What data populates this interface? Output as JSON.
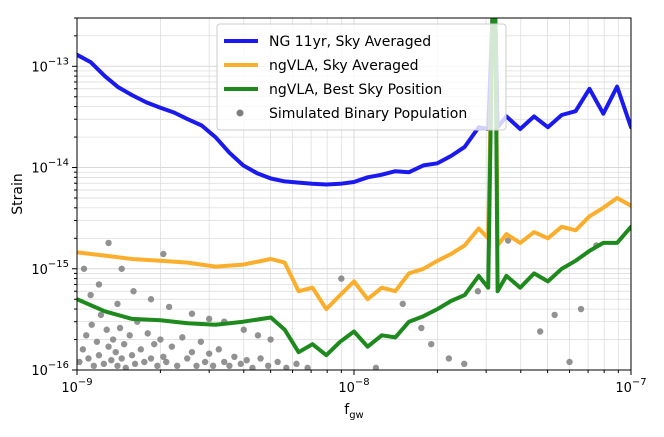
{
  "chart_data": {
    "type": "line",
    "xlabel": "f",
    "xlabel_sub": "gw",
    "ylabel": "Strain",
    "xscale": "log",
    "yscale": "log",
    "xlim": [
      1e-09,
      1e-07
    ],
    "ylim": [
      1e-16,
      3e-13
    ],
    "grid": true,
    "legend_position": "top-right",
    "x_ticks": [
      {
        "value": 1e-09,
        "base": "10",
        "exp": "−9"
      },
      {
        "value": 1e-08,
        "base": "10",
        "exp": "−8"
      },
      {
        "value": 1e-07,
        "base": "10",
        "exp": "−7"
      }
    ],
    "y_ticks": [
      {
        "value": 1e-16,
        "base": "10",
        "exp": "−16"
      },
      {
        "value": 1e-15,
        "base": "10",
        "exp": "−15"
      },
      {
        "value": 1e-14,
        "base": "10",
        "exp": "−14"
      },
      {
        "value": 1e-13,
        "base": "10",
        "exp": "−13"
      }
    ],
    "series": [
      {
        "name": "NG 11yr, Sky Averaged",
        "color": "#1a1aef",
        "kind": "line",
        "points": [
          [
            1e-09,
            1.3e-13
          ],
          [
            1.12e-09,
            1.1e-13
          ],
          [
            1.26e-09,
            8e-14
          ],
          [
            1.41e-09,
            6.2e-14
          ],
          [
            1.58e-09,
            5.2e-14
          ],
          [
            1.78e-09,
            4.4e-14
          ],
          [
            2e-09,
            3.9e-14
          ],
          [
            2.24e-09,
            3.5e-14
          ],
          [
            2.51e-09,
            3e-14
          ],
          [
            2.82e-09,
            2.6e-14
          ],
          [
            3.16e-09,
            2e-14
          ],
          [
            3.55e-09,
            1.4e-14
          ],
          [
            3.98e-09,
            1.05e-14
          ],
          [
            4.47e-09,
            8.8e-15
          ],
          [
            5.01e-09,
            7.8e-15
          ],
          [
            5.62e-09,
            7.3e-15
          ],
          [
            6.31e-09,
            7.1e-15
          ],
          [
            7.08e-09,
            6.9e-15
          ],
          [
            7.94e-09,
            6.8e-15
          ],
          [
            8.91e-09,
            6.9e-15
          ],
          [
            1e-08,
            7.2e-15
          ],
          [
            1.12e-08,
            8e-15
          ],
          [
            1.26e-08,
            8.5e-15
          ],
          [
            1.41e-08,
            9.2e-15
          ],
          [
            1.58e-08,
            9e-15
          ],
          [
            1.78e-08,
            1.05e-14
          ],
          [
            2e-08,
            1.1e-14
          ],
          [
            2.24e-08,
            1.3e-14
          ],
          [
            2.51e-08,
            1.6e-14
          ],
          [
            2.82e-08,
            2.5e-14
          ],
          [
            3.05e-08,
            2.4e-14
          ],
          [
            3.16e-08,
            3e-13
          ],
          [
            3.24e-08,
            3e-13
          ],
          [
            3.3e-08,
            2.5e-14
          ],
          [
            3.55e-08,
            3.2e-14
          ],
          [
            3.98e-08,
            2.4e-14
          ],
          [
            4.47e-08,
            3.2e-14
          ],
          [
            5.01e-08,
            2.5e-14
          ],
          [
            5.62e-08,
            3.3e-14
          ],
          [
            6.31e-08,
            3.6e-14
          ],
          [
            7.08e-08,
            6e-14
          ],
          [
            7.94e-08,
            3.4e-14
          ],
          [
            8.91e-08,
            6.3e-14
          ],
          [
            1e-07,
            2.5e-14
          ]
        ]
      },
      {
        "name": "ngVLA, Sky Averaged",
        "color": "#fbae2b",
        "kind": "line",
        "points": [
          [
            1e-09,
            1.45e-15
          ],
          [
            1.26e-09,
            1.35e-15
          ],
          [
            1.58e-09,
            1.25e-15
          ],
          [
            2e-09,
            1.2e-15
          ],
          [
            2.51e-09,
            1.15e-15
          ],
          [
            3.16e-09,
            1.05e-15
          ],
          [
            3.98e-09,
            1.1e-15
          ],
          [
            5.01e-09,
            1.25e-15
          ],
          [
            5.62e-09,
            1.15e-15
          ],
          [
            6.31e-09,
            6e-16
          ],
          [
            7.08e-09,
            6.5e-16
          ],
          [
            7.94e-09,
            4e-16
          ],
          [
            8.91e-09,
            5.5e-16
          ],
          [
            1e-08,
            7.5e-16
          ],
          [
            1.12e-08,
            5e-16
          ],
          [
            1.26e-08,
            6.5e-16
          ],
          [
            1.41e-08,
            6e-16
          ],
          [
            1.58e-08,
            9e-16
          ],
          [
            1.78e-08,
            1e-15
          ],
          [
            2e-08,
            1.2e-15
          ],
          [
            2.24e-08,
            1.4e-15
          ],
          [
            2.51e-08,
            1.7e-15
          ],
          [
            2.82e-08,
            2.5e-15
          ],
          [
            3.05e-08,
            2e-15
          ],
          [
            3.16e-08,
            3e-13
          ],
          [
            3.24e-08,
            3e-13
          ],
          [
            3.3e-08,
            1.7e-15
          ],
          [
            3.55e-08,
            2.2e-15
          ],
          [
            3.98e-08,
            1.8e-15
          ],
          [
            4.47e-08,
            2.3e-15
          ],
          [
            5.01e-08,
            2e-15
          ],
          [
            5.62e-08,
            2.6e-15
          ],
          [
            6.31e-08,
            2.4e-15
          ],
          [
            7.08e-08,
            3.3e-15
          ],
          [
            7.94e-08,
            4e-15
          ],
          [
            8.91e-08,
            5e-15
          ],
          [
            1e-07,
            4.2e-15
          ]
        ]
      },
      {
        "name": "ngVLA, Best Sky Position",
        "color": "#1e8a1e",
        "kind": "line",
        "points": [
          [
            1e-09,
            5e-16
          ],
          [
            1.26e-09,
            3.8e-16
          ],
          [
            1.58e-09,
            3.2e-16
          ],
          [
            2e-09,
            3.1e-16
          ],
          [
            2.51e-09,
            2.9e-16
          ],
          [
            3.16e-09,
            2.8e-16
          ],
          [
            3.98e-09,
            3e-16
          ],
          [
            5.01e-09,
            3.3e-16
          ],
          [
            5.62e-09,
            2.5e-16
          ],
          [
            6.31e-09,
            1.5e-16
          ],
          [
            7.08e-09,
            1.8e-16
          ],
          [
            7.94e-09,
            1.4e-16
          ],
          [
            8.91e-09,
            1.9e-16
          ],
          [
            1e-08,
            2.4e-16
          ],
          [
            1.12e-08,
            1.7e-16
          ],
          [
            1.26e-08,
            2.2e-16
          ],
          [
            1.41e-08,
            2.1e-16
          ],
          [
            1.58e-08,
            3e-16
          ],
          [
            1.78e-08,
            3.4e-16
          ],
          [
            2e-08,
            4e-16
          ],
          [
            2.24e-08,
            4.8e-16
          ],
          [
            2.51e-08,
            5.5e-16
          ],
          [
            2.82e-08,
            8.5e-16
          ],
          [
            3.05e-08,
            6.5e-16
          ],
          [
            3.16e-08,
            3e-13
          ],
          [
            3.24e-08,
            3e-13
          ],
          [
            3.3e-08,
            6e-16
          ],
          [
            3.55e-08,
            8.5e-16
          ],
          [
            3.98e-08,
            6.5e-16
          ],
          [
            4.47e-08,
            9e-16
          ],
          [
            5.01e-08,
            7.5e-16
          ],
          [
            5.62e-08,
            1e-15
          ],
          [
            6.31e-08,
            1.2e-15
          ],
          [
            7.08e-08,
            1.5e-15
          ],
          [
            7.94e-08,
            1.8e-15
          ],
          [
            8.91e-08,
            1.8e-15
          ],
          [
            1e-07,
            2.6e-15
          ]
        ]
      },
      {
        "name": "Simulated Binary Population",
        "color": "#7f7f7f",
        "kind": "scatter",
        "points": [
          [
            1.02e-09,
            1.2e-16
          ],
          [
            1.05e-09,
            1.6e-16
          ],
          [
            1.08e-09,
            2.2e-16
          ],
          [
            1.1e-09,
            1.3e-16
          ],
          [
            1.13e-09,
            2.8e-16
          ],
          [
            1.15e-09,
            1.1e-16
          ],
          [
            1.18e-09,
            1.9e-16
          ],
          [
            1.2e-09,
            1.4e-16
          ],
          [
            1.22e-09,
            3.5e-16
          ],
          [
            1.25e-09,
            1.15e-16
          ],
          [
            1.28e-09,
            2.5e-16
          ],
          [
            1.3e-09,
            1.7e-16
          ],
          [
            1.33e-09,
            1.25e-16
          ],
          [
            1.35e-09,
            2e-16
          ],
          [
            1.38e-09,
            1.5e-16
          ],
          [
            1.4e-09,
            1.1e-16
          ],
          [
            1.43e-09,
            2.6e-16
          ],
          [
            1.45e-09,
            1.3e-16
          ],
          [
            1.48e-09,
            1.8e-16
          ],
          [
            1.5e-09,
            1.05e-16
          ],
          [
            1.55e-09,
            2.2e-16
          ],
          [
            1.58e-09,
            1.4e-16
          ],
          [
            1.62e-09,
            1.15e-16
          ],
          [
            1.65e-09,
            3e-16
          ],
          [
            1.7e-09,
            1.6e-16
          ],
          [
            1.75e-09,
            1.2e-16
          ],
          [
            1.8e-09,
            2.3e-16
          ],
          [
            1.85e-09,
            1.3e-16
          ],
          [
            1.9e-09,
            1.8e-16
          ],
          [
            1.95e-09,
            1.1e-16
          ],
          [
            2e-09,
            2e-16
          ],
          [
            2.05e-09,
            1.35e-16
          ],
          [
            2.1e-09,
            1.2e-16
          ],
          [
            2.2e-09,
            1.7e-16
          ],
          [
            2.3e-09,
            1.1e-16
          ],
          [
            2.4e-09,
            2.1e-16
          ],
          [
            2.5e-09,
            1.3e-16
          ],
          [
            2.6e-09,
            1.5e-16
          ],
          [
            2.7e-09,
            1.1e-16
          ],
          [
            2.8e-09,
            1.9e-16
          ],
          [
            2.9e-09,
            1.2e-16
          ],
          [
            3e-09,
            1.45e-16
          ],
          [
            3.1e-09,
            1.1e-16
          ],
          [
            3.25e-09,
            1.6e-16
          ],
          [
            3.4e-09,
            1.2e-16
          ],
          [
            3.55e-09,
            1.1e-16
          ],
          [
            3.7e-09,
            1.35e-16
          ],
          [
            3.9e-09,
            1.15e-16
          ],
          [
            4.1e-09,
            1.25e-16
          ],
          [
            4.3e-09,
            1.05e-16
          ],
          [
            4.6e-09,
            1.3e-16
          ],
          [
            4.9e-09,
            1.1e-16
          ],
          [
            5.3e-09,
            1.2e-16
          ],
          [
            5.7e-09,
            1.05e-16
          ],
          [
            6.2e-09,
            1.15e-16
          ],
          [
            6.8e-09,
            1.05e-16
          ],
          [
            1.06e-09,
            1e-15
          ],
          [
            1.2e-09,
            7e-16
          ],
          [
            1.4e-09,
            4.5e-16
          ],
          [
            1.12e-09,
            5.5e-16
          ],
          [
            1.3e-09,
            1.8e-15
          ],
          [
            1.6e-09,
            6e-16
          ],
          [
            1.85e-09,
            5e-16
          ],
          [
            2.15e-09,
            4.2e-16
          ],
          [
            2.6e-09,
            3.6e-16
          ],
          [
            3e-09,
            3.2e-16
          ],
          [
            2.05e-09,
            1.4e-15
          ],
          [
            1.45e-09,
            1e-15
          ],
          [
            3.4e-09,
            3e-16
          ],
          [
            4e-09,
            2.5e-16
          ],
          [
            4.5e-09,
            2.2e-16
          ],
          [
            5e-09,
            2e-16
          ],
          [
            9e-09,
            8e-16
          ],
          [
            1.5e-08,
            4.5e-16
          ],
          [
            1.75e-08,
            2.6e-16
          ],
          [
            1.9e-08,
            1.8e-16
          ],
          [
            2.2e-08,
            1.3e-16
          ],
          [
            2.8e-08,
            6e-16
          ],
          [
            3.6e-08,
            1.9e-15
          ],
          [
            4.7e-08,
            2.4e-16
          ],
          [
            5.3e-08,
            3.5e-16
          ],
          [
            6e-08,
            1.2e-16
          ],
          [
            6.6e-08,
            4e-16
          ],
          [
            7.5e-08,
            1.7e-15
          ],
          [
            1.2e-08,
            1.05e-16
          ],
          [
            2.5e-08,
            1.15e-16
          ]
        ]
      }
    ]
  }
}
